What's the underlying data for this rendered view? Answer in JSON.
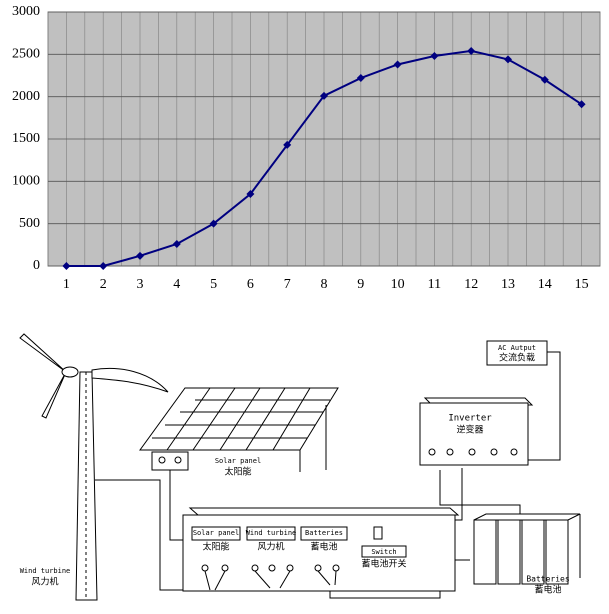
{
  "chart_data": {
    "type": "line",
    "color": "#000080",
    "categories": [
      "1",
      "2",
      "3",
      "4",
      "5",
      "6",
      "7",
      "8",
      "9",
      "10",
      "11",
      "12",
      "13",
      "14",
      "15"
    ],
    "values": [
      0,
      0,
      120,
      260,
      500,
      850,
      1430,
      2010,
      2220,
      2380,
      2480,
      2540,
      2440,
      2200,
      1910
    ],
    "ylim": [
      0,
      3000
    ],
    "yticks": [
      0,
      500,
      1000,
      1500,
      2000,
      2500,
      3000
    ],
    "grid": true
  },
  "diagram": {
    "ac_output": {
      "en": "AC Autput",
      "zh": "交流负载"
    },
    "inverter": {
      "en": "Inverter",
      "zh": "逆变器"
    },
    "solar_panel": {
      "en": "Solar panel",
      "zh": "太阳能"
    },
    "wind_turbine": {
      "en": "Wind turbine",
      "zh": "风力机"
    },
    "controller": {
      "solar_en": "Solar panel",
      "solar_zh": "太阳能",
      "wind_en": "Wind turbine",
      "wind_zh": "风力机",
      "batt_en": "Batteries",
      "batt_zh": "蓄电池",
      "switch_en": "Switch",
      "switch_zh": "蓄电池开关"
    },
    "batteries": {
      "en": "Batteries",
      "zh": "蓄电池"
    }
  }
}
